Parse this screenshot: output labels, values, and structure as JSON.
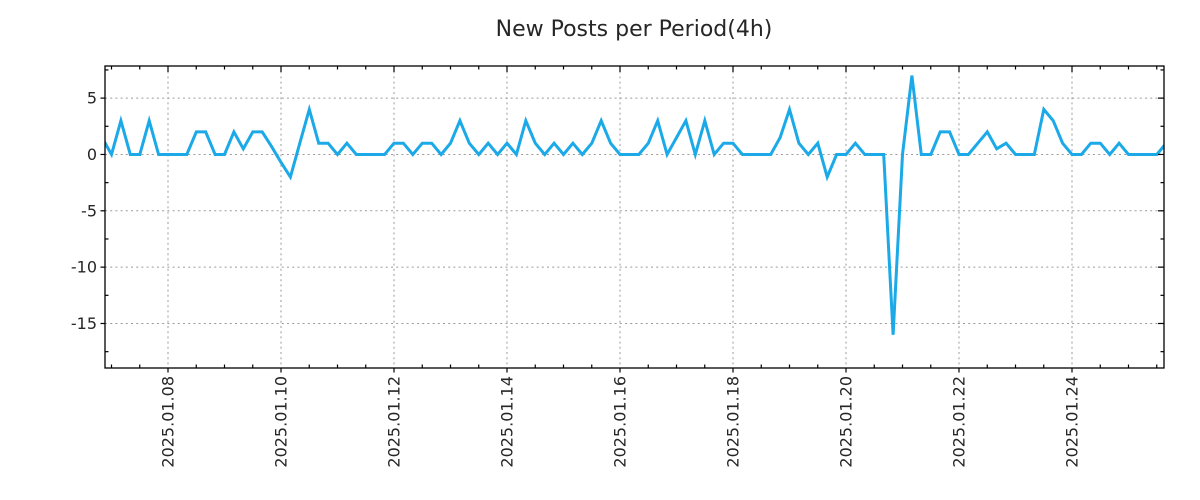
{
  "title": "New Posts per Period(4h)",
  "chart_data": {
    "type": "line",
    "title": "New Posts per Period(4h)",
    "period_hours": 4,
    "line_color": "#1BA9E8",
    "grid": true,
    "x_tick_labels": [
      "2025.01.08",
      "2025.01.10",
      "2025.01.12",
      "2025.01.14",
      "2025.01.16",
      "2025.01.18",
      "2025.01.20",
      "2025.01.22",
      "2025.01.24"
    ],
    "x_tick_every_periods": 12,
    "x_minor_every_periods": 3,
    "first_tick_at_index": 6,
    "y_ticks": [
      5,
      0,
      -5,
      -10,
      -15
    ],
    "y_minor_ticks": [
      7.5,
      2.5,
      -2.5,
      -7.5,
      -12.5,
      -17.5
    ],
    "ylim": [
      -18.95,
      7.85
    ],
    "lead_in_value": 1.5,
    "values": [
      0,
      3,
      0,
      0,
      3,
      0,
      0,
      0,
      0,
      2,
      2,
      0,
      0,
      2,
      0.5,
      2,
      2,
      0.7,
      -0.7,
      -2,
      1,
      4,
      1,
      1,
      0,
      1,
      0,
      0,
      0,
      0,
      1,
      1,
      0,
      1,
      1,
      0,
      1,
      3,
      1,
      0,
      1,
      0,
      1,
      0,
      3,
      1,
      0,
      1,
      0,
      1,
      0,
      1,
      3,
      1,
      0,
      0,
      0,
      1,
      3,
      0,
      1.5,
      3,
      0,
      3,
      0,
      1,
      1,
      0,
      0,
      0,
      0,
      1.5,
      4,
      1,
      0,
      1,
      -2,
      0,
      0,
      1,
      0,
      0,
      0,
      -16,
      0,
      7,
      0,
      0,
      2,
      2,
      0,
      0,
      1,
      2,
      0.5,
      1,
      0,
      0,
      0,
      4,
      3,
      1,
      0,
      0,
      1,
      1,
      0,
      1,
      0,
      0,
      0,
      0,
      1
    ]
  },
  "colors": {
    "spine": "#000000",
    "grid": "#9b9b9b",
    "text": "#262626"
  }
}
